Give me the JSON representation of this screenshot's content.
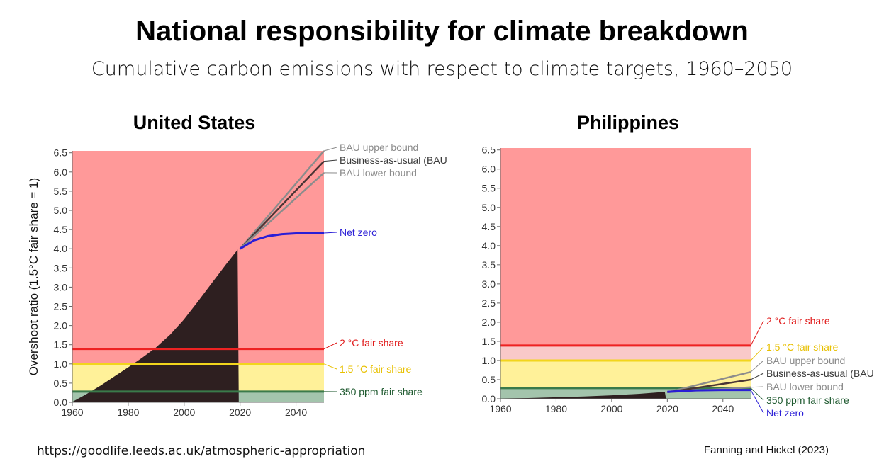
{
  "header": {
    "title": "National responsibility for climate breakdown",
    "subtitle": "Cumulative carbon emissions with respect to climate targets, 1960–2050"
  },
  "footer": {
    "source_url": "https://goodlife.leeds.ac.uk/atmospheric-appropriation",
    "citation": "Fanning and Hickel (2023)"
  },
  "colors": {
    "red_zone": "#ff9999",
    "pink_zone": "#f9c9c9",
    "yellow_zone": "#fff199",
    "green_zone": "#a3c4ac",
    "red_line": "#ee2222",
    "yellow_line": "#f2d51c",
    "green_line": "#3a7a4a",
    "area_fill": "#2e1f20",
    "net_zero": "#2a1ed6",
    "bau": "#4a3535",
    "bau_bounds": "#8c8c8c"
  },
  "chart_data": [
    {
      "type": "area",
      "title": "United States",
      "ylabel": "Overshoot ratio (1.5°C fair share = 1)",
      "xlim": [
        1960,
        2050
      ],
      "ylim": [
        0,
        6.55
      ],
      "xticks": [
        "1960",
        "1980",
        "2000",
        "2020",
        "2040"
      ],
      "yticks": [
        "0.0",
        "0.5",
        "1.0",
        "1.5",
        "2.0",
        "2.5",
        "3.0",
        "3.5",
        "4.0",
        "4.5",
        "5.0",
        "5.5",
        "6.0",
        "6.5"
      ],
      "thresholds": [
        {
          "name": "350 ppm fair share",
          "value": 0.28
        },
        {
          "name": "1.5 °C fair share",
          "value": 1.0
        },
        {
          "name": "2 °C fair share",
          "value": 1.39
        }
      ],
      "historical": {
        "x": [
          1960,
          1965,
          1970,
          1975,
          1980,
          1985,
          1990,
          1995,
          2000,
          2005,
          2010,
          2015,
          2019
        ],
        "y": [
          0.0,
          0.2,
          0.42,
          0.66,
          0.9,
          1.15,
          1.42,
          1.75,
          2.15,
          2.62,
          3.1,
          3.58,
          3.95
        ]
      },
      "series": [
        {
          "name": "BAU upper bound",
          "x": [
            2020,
            2050
          ],
          "y": [
            4.0,
            6.55
          ]
        },
        {
          "name": "Business-as-usual (BAU)",
          "x": [
            2020,
            2050
          ],
          "y": [
            4.0,
            6.28
          ]
        },
        {
          "name": "BAU lower bound",
          "x": [
            2020,
            2050
          ],
          "y": [
            4.0,
            5.98
          ]
        },
        {
          "name": "Net zero",
          "x": [
            2020,
            2025,
            2030,
            2035,
            2040,
            2045,
            2050
          ],
          "y": [
            4.0,
            4.22,
            4.33,
            4.38,
            4.4,
            4.41,
            4.41
          ]
        }
      ]
    },
    {
      "type": "area",
      "title": "Philippines",
      "xlim": [
        1960,
        2050
      ],
      "ylim": [
        0,
        6.55
      ],
      "xticks": [
        "1960",
        "1980",
        "2000",
        "2020",
        "2040"
      ],
      "yticks": [
        "0.0",
        "0.5",
        "1.0",
        "1.5",
        "2.0",
        "2.5",
        "3.0",
        "3.5",
        "4.0",
        "4.5",
        "5.0",
        "5.5",
        "6.0",
        "6.5"
      ],
      "thresholds": [
        {
          "name": "350 ppm fair share",
          "value": 0.28
        },
        {
          "name": "1.5 °C fair share",
          "value": 1.0
        },
        {
          "name": "2 °C fair share",
          "value": 1.39
        }
      ],
      "historical": {
        "x": [
          1960,
          1970,
          1980,
          1990,
          2000,
          2010,
          2019
        ],
        "y": [
          0.0,
          0.01,
          0.03,
          0.05,
          0.08,
          0.12,
          0.17
        ]
      },
      "series": [
        {
          "name": "BAU upper bound",
          "x": [
            2020,
            2050
          ],
          "y": [
            0.17,
            0.7
          ]
        },
        {
          "name": "Business-as-usual (BAU)",
          "x": [
            2020,
            2050
          ],
          "y": [
            0.17,
            0.5
          ]
        },
        {
          "name": "BAU lower bound",
          "x": [
            2020,
            2050
          ],
          "y": [
            0.17,
            0.3
          ]
        },
        {
          "name": "Net zero",
          "x": [
            2020,
            2030,
            2040,
            2050
          ],
          "y": [
            0.18,
            0.22,
            0.23,
            0.23
          ]
        }
      ]
    }
  ]
}
